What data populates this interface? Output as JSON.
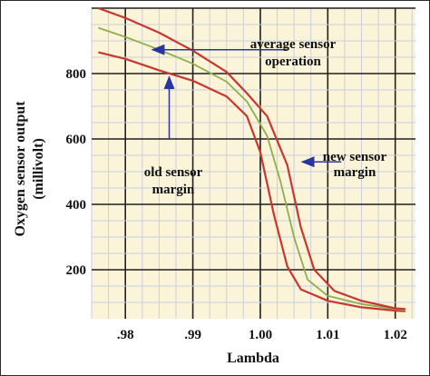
{
  "chart_data": {
    "type": "line",
    "xlabel": "Lambda",
    "ylabel": "Oxygen sensor output",
    "ylabel_unit": "(millivolt)",
    "xlim": [
      0.975,
      1.023
    ],
    "ylim": [
      50,
      1000
    ],
    "grid": true,
    "x_ticks": [
      0.98,
      0.99,
      1.0,
      1.01,
      1.02
    ],
    "x_tick_labels": [
      ".98",
      ".99",
      "1.00",
      "1.01",
      "1.02"
    ],
    "y_ticks": [
      200,
      400,
      600,
      800
    ],
    "y_tick_labels": [
      "200",
      "400",
      "600",
      "800"
    ],
    "colors": {
      "old_margin": "#c8372f",
      "average": "#8fae4c",
      "new_margin": "#c8372f",
      "grid_minor": "#c9cfe0",
      "grid_major": "#1f1f1f",
      "background": "#fbf4d8",
      "annotation": "#2a34a0"
    },
    "series": [
      {
        "values": [
          [
            0.976,
            865
          ],
          [
            0.98,
            845
          ],
          [
            0.985,
            810
          ],
          [
            0.99,
            778
          ],
          [
            0.995,
            730
          ],
          [
            0.998,
            670
          ],
          [
            1.0,
            560
          ],
          [
            1.002,
            370
          ],
          [
            1.004,
            210
          ],
          [
            1.006,
            140
          ],
          [
            1.01,
            105
          ],
          [
            1.015,
            85
          ],
          [
            1.02,
            75
          ],
          [
            1.0215,
            73
          ]
        ]
      },
      {
        "values": [
          [
            0.976,
            940
          ],
          [
            0.98,
            912
          ],
          [
            0.985,
            873
          ],
          [
            0.99,
            830
          ],
          [
            0.995,
            775
          ],
          [
            0.998,
            715
          ],
          [
            1.001,
            610
          ],
          [
            1.003,
            470
          ],
          [
            1.005,
            300
          ],
          [
            1.007,
            170
          ],
          [
            1.01,
            120
          ],
          [
            1.015,
            95
          ],
          [
            1.02,
            80
          ],
          [
            1.0215,
            77
          ]
        ]
      },
      {
        "values": [
          [
            0.976,
            1000
          ],
          [
            0.98,
            970
          ],
          [
            0.985,
            925
          ],
          [
            0.99,
            870
          ],
          [
            0.995,
            805
          ],
          [
            0.998,
            740
          ],
          [
            1.001,
            670
          ],
          [
            1.004,
            520
          ],
          [
            1.006,
            330
          ],
          [
            1.008,
            200
          ],
          [
            1.011,
            135
          ],
          [
            1.015,
            105
          ],
          [
            1.02,
            82
          ],
          [
            1.0215,
            80
          ]
        ]
      }
    ],
    "annotations": [
      {
        "lines": [
          "average sensor",
          "operation"
        ],
        "arrow_to": [
          0.984,
          873
        ],
        "arrow_from": [
          1.004,
          873
        ]
      },
      {
        "lines": [
          "old sensor",
          "margin"
        ],
        "arrow_to": [
          0.9865,
          790
        ],
        "arrow_from": [
          0.9865,
          600
        ]
      },
      {
        "lines": [
          "new sensor",
          "margin"
        ],
        "arrow_to": [
          1.0062,
          530
        ],
        "arrow_from": [
          1.012,
          530
        ]
      }
    ]
  }
}
